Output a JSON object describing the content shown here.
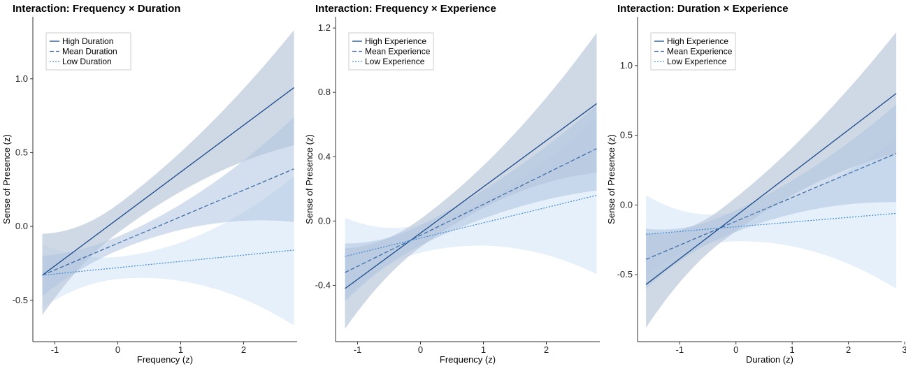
{
  "colors": {
    "high": "#1b4a8a",
    "mean": "#3f6ea8",
    "low": "#4a8fd4",
    "band_high": "#bfcbdc",
    "band_mean": "#aec4e0",
    "band_low": "#d6e6f6"
  },
  "chart_data": [
    {
      "type": "line",
      "title": "Interaction: Frequency × Duration",
      "xlabel": "Frequency (z)",
      "ylabel": "Sense of Presence (z)",
      "xlim": [
        -1.35,
        2.85
      ],
      "ylim": [
        -0.78,
        1.42
      ],
      "xticks": [
        -1,
        0,
        1,
        2
      ],
      "xtick_labels": [
        "-1",
        "0",
        "1",
        "2"
      ],
      "yticks": [
        -0.5,
        0,
        0.5,
        1.0
      ],
      "ytick_labels": [
        "-0.5",
        "0.0",
        "0.5",
        "1.0"
      ],
      "legend_position": "top-left",
      "x_range": [
        -1.2,
        2.8
      ],
      "series": [
        {
          "name": "High Duration",
          "style": "solid",
          "y_start": -0.33,
          "y_end": 0.94,
          "band_start": [
            -0.6,
            -0.05
          ],
          "band_end": [
            0.55,
            1.33
          ]
        },
        {
          "name": "Mean Duration",
          "style": "dashed",
          "y_start": -0.33,
          "y_end": 0.39,
          "band_start": [
            -0.47,
            -0.2
          ],
          "band_end": [
            0.03,
            0.74
          ]
        },
        {
          "name": "Low Duration",
          "style": "dotted",
          "y_start": -0.33,
          "y_end": -0.16,
          "band_start": [
            -0.55,
            -0.12
          ],
          "band_end": [
            -0.67,
            0.34
          ]
        }
      ]
    },
    {
      "type": "line",
      "title": "Interaction: Frequency × Experience",
      "xlabel": "Frequency (z)",
      "ylabel": "Sense of Presence (z)",
      "xlim": [
        -1.35,
        2.85
      ],
      "ylim": [
        -0.75,
        1.27
      ],
      "xticks": [
        -1,
        0,
        1,
        2
      ],
      "xtick_labels": [
        "-1",
        "0",
        "1",
        "2"
      ],
      "yticks": [
        -0.4,
        0,
        0.4,
        0.8,
        1.2
      ],
      "ytick_labels": [
        "-0.4",
        "0.0",
        "0.4",
        "0.8",
        "1.2"
      ],
      "legend_position": "top-left",
      "x_range": [
        -1.2,
        2.8
      ],
      "series": [
        {
          "name": "High Experience",
          "style": "solid",
          "y_start": -0.42,
          "y_end": 0.73,
          "band_start": [
            -0.67,
            -0.17
          ],
          "band_end": [
            0.3,
            1.17
          ]
        },
        {
          "name": "Mean Experience",
          "style": "dashed",
          "y_start": -0.32,
          "y_end": 0.45,
          "band_start": [
            -0.5,
            -0.14
          ],
          "band_end": [
            0.19,
            0.72
          ]
        },
        {
          "name": "Low Experience",
          "style": "dotted",
          "y_start": -0.22,
          "y_end": 0.16,
          "band_start": [
            -0.48,
            0.02
          ],
          "band_end": [
            -0.33,
            0.65
          ]
        }
      ]
    },
    {
      "type": "line",
      "title": "Interaction: Duration × Experience",
      "xlabel": "Duration (z)",
      "ylabel": "Sense of Presence (z)",
      "xlim": [
        -1.75,
        2.95
      ],
      "ylim": [
        -0.98,
        1.35
      ],
      "xticks": [
        -1,
        0,
        1,
        2,
        3
      ],
      "xtick_labels": [
        "-1",
        "0",
        "1",
        "2",
        "3"
      ],
      "yticks": [
        -0.5,
        0,
        0.5,
        1.0
      ],
      "ytick_labels": [
        "-0.5",
        "0.0",
        "0.5",
        "1.0"
      ],
      "legend_position": "top-left",
      "x_range": [
        -1.6,
        2.85
      ],
      "series": [
        {
          "name": "High Experience",
          "style": "solid",
          "y_start": -0.57,
          "y_end": 0.8,
          "band_start": [
            -0.88,
            -0.2
          ],
          "band_end": [
            0.37,
            1.24
          ]
        },
        {
          "name": "Mean Experience",
          "style": "dashed",
          "y_start": -0.39,
          "y_end": 0.37,
          "band_start": [
            -0.6,
            -0.17
          ],
          "band_end": [
            0.02,
            0.72
          ]
        },
        {
          "name": "Low Experience",
          "style": "dotted",
          "y_start": -0.21,
          "y_end": -0.06,
          "band_start": [
            -0.5,
            0.07
          ],
          "band_end": [
            -0.6,
            0.48
          ]
        }
      ]
    }
  ]
}
